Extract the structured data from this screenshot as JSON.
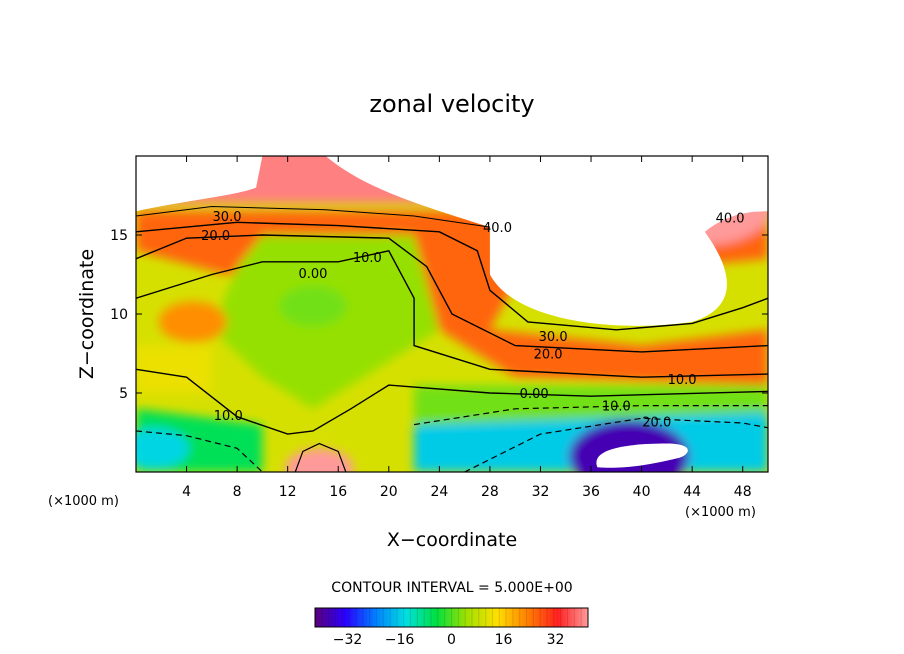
{
  "chart_data": {
    "type": "heatmap",
    "subtype": "filled-contour",
    "title": "zonal velocity",
    "xlabel": "X−coordinate",
    "ylabel": "Z−coordinate",
    "x_unit_left": "(×1000 m)",
    "x_unit_right": "(×1000 m)",
    "xlim": [
      0,
      50
    ],
    "ylim": [
      0,
      20
    ],
    "x_ticks": [
      "4",
      "8",
      "12",
      "16",
      "20",
      "24",
      "28",
      "32",
      "36",
      "40",
      "44",
      "48"
    ],
    "y_ticks": [
      "5",
      "10",
      "15"
    ],
    "contour_interval_text": "CONTOUR INTERVAL = 5.000E+00",
    "colorbar": {
      "range": [
        -42,
        42
      ],
      "ticks": [
        "−32",
        "−16",
        "0",
        "16",
        "32"
      ],
      "colors": [
        "#5a007a",
        "#2a00ff",
        "#0080ff",
        "#00e0e0",
        "#00e040",
        "#a0e000",
        "#ffe000",
        "#ff8000",
        "#ff2020",
        "#ff9a9a"
      ]
    },
    "contour_labels": [
      {
        "text": "30.0",
        "x": 7.2,
        "y": 16.2
      },
      {
        "text": "20.0",
        "x": 6.3,
        "y": 15.0
      },
      {
        "text": "40.0",
        "x": 28.6,
        "y": 15.5
      },
      {
        "text": "40.0",
        "x": 47.0,
        "y": 16.1
      },
      {
        "text": "10.0",
        "x": 18.3,
        "y": 13.6
      },
      {
        "text": "0.00",
        "x": 14.0,
        "y": 12.6
      },
      {
        "text": "30.0",
        "x": 33.0,
        "y": 8.6
      },
      {
        "text": "20.0",
        "x": 32.6,
        "y": 7.5
      },
      {
        "text": "10.0",
        "x": 43.2,
        "y": 5.9
      },
      {
        "text": "0.00",
        "x": 31.5,
        "y": 5.0
      },
      {
        "text": "10.0",
        "x": 38.0,
        "y": 4.2
      },
      {
        "text": "20.0",
        "x": 41.2,
        "y": 3.2
      },
      {
        "text": "10.0",
        "x": 7.3,
        "y": 3.6
      }
    ],
    "field_features": [
      {
        "kind": "jet_max",
        "x": 45,
        "y": 17,
        "value": 42
      },
      {
        "kind": "jet_max",
        "x": 10.5,
        "y": 20,
        "value": 40
      },
      {
        "kind": "core_min",
        "x": 39,
        "y": 1.0,
        "value": -38
      },
      {
        "kind": "core_min",
        "x": 1.5,
        "y": 1.5,
        "value": -15
      },
      {
        "kind": "surface_max",
        "x": 14.5,
        "y": 0.2,
        "value": 45
      },
      {
        "kind": "local_max",
        "x": 4.5,
        "y": 9.5,
        "value": 22
      },
      {
        "kind": "mid_min",
        "x": 14,
        "y": 10.5,
        "value": 2
      }
    ],
    "grid": false,
    "legend": "colorbar-bottom"
  }
}
